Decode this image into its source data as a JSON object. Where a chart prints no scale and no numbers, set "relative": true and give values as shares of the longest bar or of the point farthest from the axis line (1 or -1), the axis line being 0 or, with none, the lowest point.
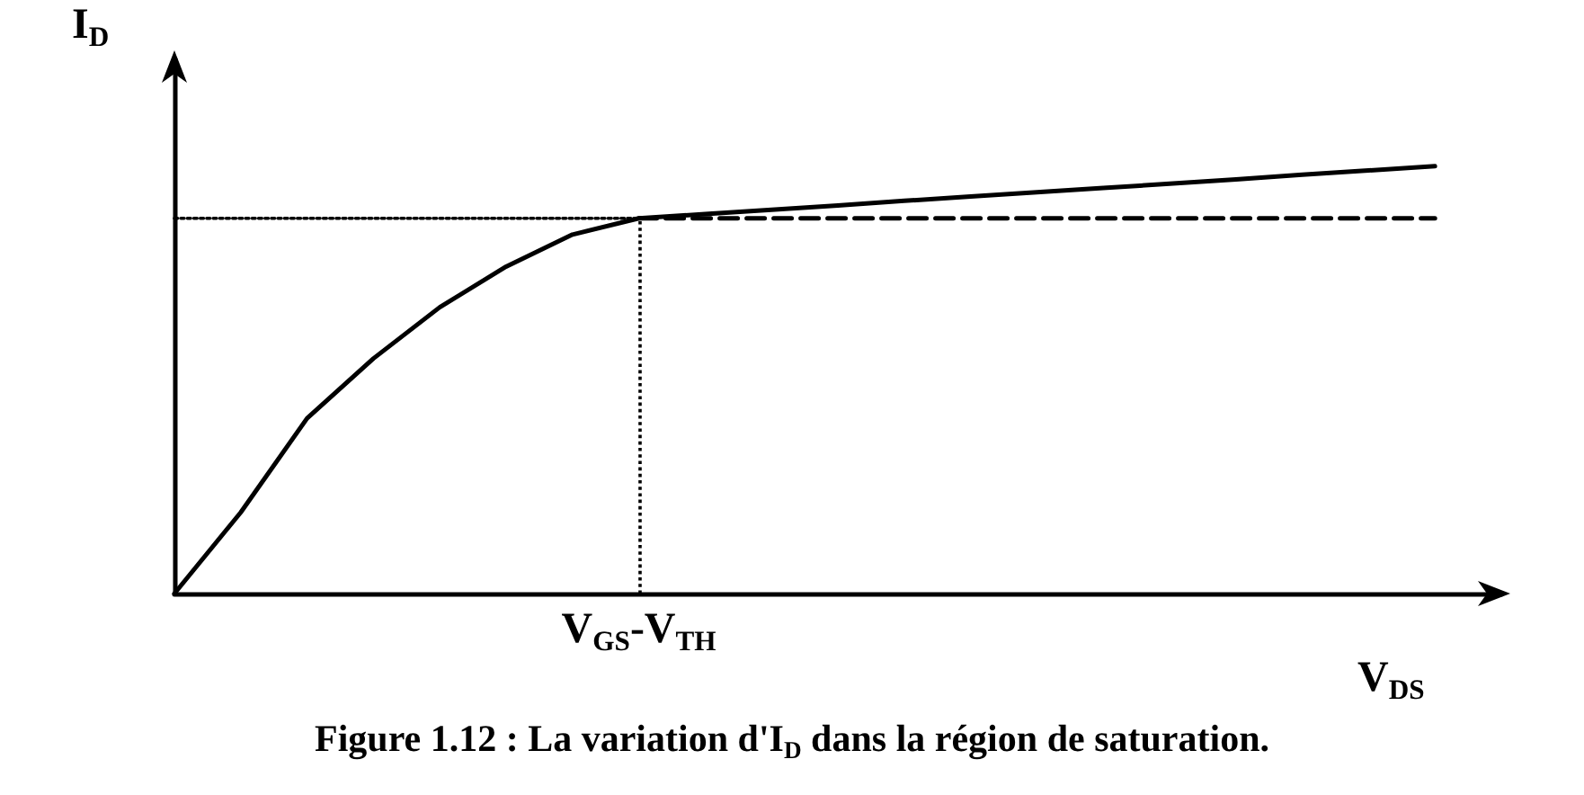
{
  "chart_data": {
    "type": "line",
    "title": "Figure 1.12 : La variation d'I$_{D}$ dans la région de saturation.",
    "xlabel": "V$_{DS}$",
    "ylabel": "I$_{D}$",
    "relative": true,
    "marker": "none",
    "categories": [
      null,
      null,
      null,
      null,
      null,
      null,
      null,
      null,
      null,
      null,
      null,
      null,
      null,
      null,
      null,
      null,
      null,
      null,
      null,
      null,
      null
    ],
    "series": [
      {
        "color": "#000000",
        "line_style": "solid",
        "values": [
          0,
          0.19,
          0.41,
          0.55,
          0.67,
          0.765,
          0.84,
          0.878,
          0.888,
          0.898,
          0.908,
          0.919,
          0.929,
          0.939,
          0.949,
          0.959,
          0.969,
          0.98,
          0.99,
          1,
          null
        ]
      },
      {
        "color": "#000000",
        "line_style": "dotted",
        "values": [
          0.878,
          0.878,
          0.878,
          0.878,
          0.878,
          0.878,
          0.878,
          0.878,
          null,
          null,
          null,
          null,
          null,
          null,
          null,
          null,
          null,
          null,
          null,
          null,
          null
        ]
      },
      {
        "color": "#000000",
        "line_style": "dashed",
        "values": [
          null,
          null,
          null,
          null,
          null,
          null,
          null,
          0.878,
          0.878,
          0.878,
          0.878,
          0.878,
          0.878,
          0.878,
          0.878,
          0.878,
          0.878,
          0.878,
          0.878,
          0.878,
          null
        ]
      }
    ],
    "annotations": [
      "V$_{GS}$-V$_{TH}$"
    ]
  }
}
